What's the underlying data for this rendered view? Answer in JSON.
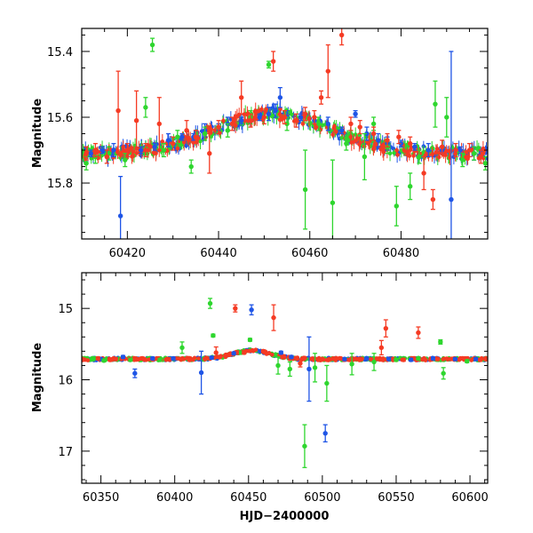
{
  "chart_data": [
    {
      "type": "scatter",
      "title": "",
      "xlabel": "",
      "ylabel": "Magnitude",
      "xlim": [
        60410,
        60499
      ],
      "ylim": [
        15.97,
        15.33
      ],
      "y_inverted": true,
      "grid": false,
      "x_ticks": [
        "60420",
        "60440",
        "60460",
        "60480"
      ],
      "y_ticks": [
        "15.4",
        "15.6",
        "15.8"
      ],
      "series": [
        {
          "color": "#1f55e6",
          "trend_base": 15.71,
          "trend_amplitude": 0.12,
          "points": [
            {
              "x": 60412.0,
              "y": 15.71,
              "err": 0.01
            },
            {
              "x": 60414.5,
              "y": 15.7,
              "err": 0.01
            },
            {
              "x": 60417.0,
              "y": 15.7,
              "err": 0.02
            },
            {
              "x": 60418.5,
              "y": 15.9,
              "err": 0.12
            },
            {
              "x": 60420.0,
              "y": 15.7,
              "err": 0.02
            },
            {
              "x": 60423.0,
              "y": 15.7,
              "err": 0.01
            },
            {
              "x": 60426.0,
              "y": 15.69,
              "err": 0.01
            },
            {
              "x": 60429.0,
              "y": 15.67,
              "err": 0.02
            },
            {
              "x": 60432.0,
              "y": 15.66,
              "err": 0.01
            },
            {
              "x": 60434.5,
              "y": 15.66,
              "err": 0.01
            },
            {
              "x": 60437.0,
              "y": 15.64,
              "err": 0.02
            },
            {
              "x": 60440.0,
              "y": 15.63,
              "err": 0.01
            },
            {
              "x": 60442.0,
              "y": 15.62,
              "err": 0.02
            },
            {
              "x": 60445.0,
              "y": 15.61,
              "err": 0.01
            },
            {
              "x": 60447.0,
              "y": 15.61,
              "err": 0.01
            },
            {
              "x": 60449.0,
              "y": 15.6,
              "err": 0.01
            },
            {
              "x": 60451.0,
              "y": 15.59,
              "err": 0.02
            },
            {
              "x": 60452.5,
              "y": 15.58,
              "err": 0.02
            },
            {
              "x": 60453.5,
              "y": 15.54,
              "err": 0.03
            },
            {
              "x": 60455.0,
              "y": 15.6,
              "err": 0.02
            },
            {
              "x": 60458.0,
              "y": 15.6,
              "err": 0.01
            },
            {
              "x": 60461.0,
              "y": 15.61,
              "err": 0.01
            },
            {
              "x": 60464.0,
              "y": 15.62,
              "err": 0.02
            },
            {
              "x": 60467.0,
              "y": 15.64,
              "err": 0.01
            },
            {
              "x": 60470.0,
              "y": 15.59,
              "err": 0.01
            },
            {
              "x": 60472.5,
              "y": 15.65,
              "err": 0.02
            },
            {
              "x": 60475.0,
              "y": 15.67,
              "err": 0.02
            },
            {
              "x": 60477.0,
              "y": 15.68,
              "err": 0.02
            },
            {
              "x": 60480.0,
              "y": 15.68,
              "err": 0.01
            },
            {
              "x": 60483.0,
              "y": 15.69,
              "err": 0.01
            },
            {
              "x": 60486.0,
              "y": 15.7,
              "err": 0.02
            },
            {
              "x": 60489.0,
              "y": 15.7,
              "err": 0.01
            },
            {
              "x": 60491.0,
              "y": 15.85,
              "err": 0.45
            },
            {
              "x": 60493.0,
              "y": 15.7,
              "err": 0.01
            },
            {
              "x": 60496.0,
              "y": 15.71,
              "err": 0.02
            }
          ]
        },
        {
          "color": "#2ed62e",
          "trend_base": 15.71,
          "trend_amplitude": 0.12,
          "points": [
            {
              "x": 60411.0,
              "y": 15.74,
              "err": 0.02
            },
            {
              "x": 60413.0,
              "y": 15.72,
              "err": 0.02
            },
            {
              "x": 60416.0,
              "y": 15.71,
              "err": 0.02
            },
            {
              "x": 60419.5,
              "y": 15.73,
              "err": 0.02
            },
            {
              "x": 60424.0,
              "y": 15.57,
              "err": 0.03
            },
            {
              "x": 60425.5,
              "y": 15.38,
              "err": 0.02
            },
            {
              "x": 60428.0,
              "y": 15.7,
              "err": 0.02
            },
            {
              "x": 60431.0,
              "y": 15.66,
              "err": 0.02
            },
            {
              "x": 60434.0,
              "y": 15.75,
              "err": 0.02
            },
            {
              "x": 60437.0,
              "y": 15.65,
              "err": 0.02
            },
            {
              "x": 60442.0,
              "y": 15.64,
              "err": 0.02
            },
            {
              "x": 60447.0,
              "y": 15.6,
              "err": 0.02
            },
            {
              "x": 60451.0,
              "y": 15.44,
              "err": 0.01
            },
            {
              "x": 60455.0,
              "y": 15.62,
              "err": 0.02
            },
            {
              "x": 60459.0,
              "y": 15.82,
              "err": 0.12
            },
            {
              "x": 60462.0,
              "y": 15.62,
              "err": 0.02
            },
            {
              "x": 60465.0,
              "y": 15.86,
              "err": 0.13
            },
            {
              "x": 60468.0,
              "y": 15.68,
              "err": 0.02
            },
            {
              "x": 60472.0,
              "y": 15.72,
              "err": 0.07
            },
            {
              "x": 60474.0,
              "y": 15.62,
              "err": 0.02
            },
            {
              "x": 60477.0,
              "y": 15.69,
              "err": 0.02
            },
            {
              "x": 60479.0,
              "y": 15.87,
              "err": 0.06
            },
            {
              "x": 60482.0,
              "y": 15.81,
              "err": 0.04
            },
            {
              "x": 60484.0,
              "y": 15.72,
              "err": 0.02
            },
            {
              "x": 60487.5,
              "y": 15.56,
              "err": 0.07
            },
            {
              "x": 60490.0,
              "y": 15.6,
              "err": 0.06
            },
            {
              "x": 60493.5,
              "y": 15.73,
              "err": 0.02
            },
            {
              "x": 60496.0,
              "y": 15.71,
              "err": 0.02
            },
            {
              "x": 60498.5,
              "y": 15.74,
              "err": 0.02
            }
          ]
        },
        {
          "color": "#f53b24",
          "trend_base": 15.71,
          "trend_amplitude": 0.12,
          "points": [
            {
              "x": 60411.0,
              "y": 15.71,
              "err": 0.02
            },
            {
              "x": 60413.0,
              "y": 15.7,
              "err": 0.02
            },
            {
              "x": 60415.5,
              "y": 15.72,
              "err": 0.02
            },
            {
              "x": 60418.0,
              "y": 15.58,
              "err": 0.12
            },
            {
              "x": 60420.0,
              "y": 15.7,
              "err": 0.02
            },
            {
              "x": 60422.0,
              "y": 15.61,
              "err": 0.09
            },
            {
              "x": 60424.0,
              "y": 15.7,
              "err": 0.02
            },
            {
              "x": 60427.0,
              "y": 15.62,
              "err": 0.08
            },
            {
              "x": 60430.0,
              "y": 15.68,
              "err": 0.02
            },
            {
              "x": 60433.0,
              "y": 15.64,
              "err": 0.03
            },
            {
              "x": 60435.0,
              "y": 15.66,
              "err": 0.02
            },
            {
              "x": 60438.0,
              "y": 15.71,
              "err": 0.06
            },
            {
              "x": 60440.0,
              "y": 15.63,
              "err": 0.02
            },
            {
              "x": 60443.0,
              "y": 15.62,
              "err": 0.02
            },
            {
              "x": 60445.0,
              "y": 15.54,
              "err": 0.05
            },
            {
              "x": 60447.0,
              "y": 15.61,
              "err": 0.02
            },
            {
              "x": 60450.0,
              "y": 15.6,
              "err": 0.02
            },
            {
              "x": 60452.0,
              "y": 15.43,
              "err": 0.03
            },
            {
              "x": 60454.5,
              "y": 15.6,
              "err": 0.02
            },
            {
              "x": 60457.0,
              "y": 15.61,
              "err": 0.02
            },
            {
              "x": 60459.0,
              "y": 15.59,
              "err": 0.02
            },
            {
              "x": 60461.0,
              "y": 15.6,
              "err": 0.02
            },
            {
              "x": 60462.5,
              "y": 15.54,
              "err": 0.02
            },
            {
              "x": 60464.0,
              "y": 15.46,
              "err": 0.08
            },
            {
              "x": 60467.0,
              "y": 15.35,
              "err": 0.03
            },
            {
              "x": 60469.0,
              "y": 15.62,
              "err": 0.02
            },
            {
              "x": 60471.0,
              "y": 15.63,
              "err": 0.02
            },
            {
              "x": 60474.0,
              "y": 15.65,
              "err": 0.02
            },
            {
              "x": 60477.0,
              "y": 15.67,
              "err": 0.02
            },
            {
              "x": 60479.5,
              "y": 15.66,
              "err": 0.02
            },
            {
              "x": 60482.0,
              "y": 15.68,
              "err": 0.02
            },
            {
              "x": 60485.0,
              "y": 15.77,
              "err": 0.05
            },
            {
              "x": 60487.0,
              "y": 15.85,
              "err": 0.03
            },
            {
              "x": 60489.0,
              "y": 15.69,
              "err": 0.02
            },
            {
              "x": 60492.0,
              "y": 15.7,
              "err": 0.02
            },
            {
              "x": 60495.0,
              "y": 15.7,
              "err": 0.02
            },
            {
              "x": 60497.5,
              "y": 15.72,
              "err": 0.02
            }
          ]
        }
      ]
    },
    {
      "type": "scatter",
      "title": "",
      "xlabel": "HJD−2400000",
      "ylabel": "Magnitude",
      "xlim": [
        60337,
        60612
      ],
      "ylim": [
        17.45,
        14.5
      ],
      "y_inverted": true,
      "grid": false,
      "x_ticks": [
        "60350",
        "60400",
        "60450",
        "60500",
        "60550",
        "60600"
      ],
      "y_ticks": [
        "15",
        "16",
        "17"
      ],
      "series": [
        {
          "color": "#1f55e6",
          "trend_base": 15.71,
          "trend_amplitude": 0.12,
          "points": [
            {
              "x": 60350.0,
              "y": 15.71,
              "err": 0.02
            },
            {
              "x": 60365.0,
              "y": 15.68,
              "err": 0.02
            },
            {
              "x": 60373.0,
              "y": 15.91,
              "err": 0.06
            },
            {
              "x": 60385.0,
              "y": 15.7,
              "err": 0.02
            },
            {
              "x": 60399.0,
              "y": 15.7,
              "err": 0.02
            },
            {
              "x": 60418.0,
              "y": 15.9,
              "err": 0.3
            },
            {
              "x": 60425.0,
              "y": 15.69,
              "err": 0.02
            },
            {
              "x": 60440.0,
              "y": 15.63,
              "err": 0.02
            },
            {
              "x": 60452.0,
              "y": 15.02,
              "err": 0.07
            },
            {
              "x": 60458.0,
              "y": 15.6,
              "err": 0.02
            },
            {
              "x": 60472.0,
              "y": 15.62,
              "err": 0.02
            },
            {
              "x": 60479.0,
              "y": 15.68,
              "err": 0.02
            },
            {
              "x": 60491.0,
              "y": 15.85,
              "err": 0.45
            },
            {
              "x": 60502.0,
              "y": 16.75,
              "err": 0.12
            },
            {
              "x": 60515.0,
              "y": 15.71,
              "err": 0.02
            },
            {
              "x": 60530.0,
              "y": 15.7,
              "err": 0.02
            },
            {
              "x": 60545.0,
              "y": 15.71,
              "err": 0.02
            },
            {
              "x": 60560.0,
              "y": 15.72,
              "err": 0.02
            },
            {
              "x": 60575.0,
              "y": 15.7,
              "err": 0.02
            },
            {
              "x": 60590.0,
              "y": 15.71,
              "err": 0.02
            },
            {
              "x": 60604.0,
              "y": 15.71,
              "err": 0.02
            }
          ]
        },
        {
          "color": "#2ed62e",
          "trend_base": 15.71,
          "trend_amplitude": 0.12,
          "points": [
            {
              "x": 60352.0,
              "y": 15.73,
              "err": 0.02
            },
            {
              "x": 60370.0,
              "y": 15.72,
              "err": 0.02
            },
            {
              "x": 60390.0,
              "y": 15.72,
              "err": 0.02
            },
            {
              "x": 60405.0,
              "y": 15.55,
              "err": 0.08
            },
            {
              "x": 60424.0,
              "y": 14.93,
              "err": 0.07
            },
            {
              "x": 60426.0,
              "y": 15.38,
              "err": 0.02
            },
            {
              "x": 60445.0,
              "y": 15.62,
              "err": 0.02
            },
            {
              "x": 60451.0,
              "y": 15.44,
              "err": 0.02
            },
            {
              "x": 60470.0,
              "y": 15.8,
              "err": 0.12
            },
            {
              "x": 60478.0,
              "y": 15.85,
              "err": 0.1
            },
            {
              "x": 60488.0,
              "y": 16.93,
              "err": 0.3
            },
            {
              "x": 60495.0,
              "y": 15.83,
              "err": 0.2
            },
            {
              "x": 60503.0,
              "y": 16.05,
              "err": 0.25
            },
            {
              "x": 60520.0,
              "y": 15.78,
              "err": 0.15
            },
            {
              "x": 60535.0,
              "y": 15.75,
              "err": 0.12
            },
            {
              "x": 60550.0,
              "y": 15.72,
              "err": 0.02
            },
            {
              "x": 60565.0,
              "y": 15.7,
              "err": 0.02
            },
            {
              "x": 60580.0,
              "y": 15.47,
              "err": 0.03
            },
            {
              "x": 60582.0,
              "y": 15.91,
              "err": 0.08
            },
            {
              "x": 60598.0,
              "y": 15.74,
              "err": 0.02
            }
          ]
        },
        {
          "color": "#f53b24",
          "trend_base": 15.71,
          "trend_amplitude": 0.12,
          "points": [
            {
              "x": 60348.0,
              "y": 15.7,
              "err": 0.02
            },
            {
              "x": 60360.0,
              "y": 15.71,
              "err": 0.02
            },
            {
              "x": 60378.0,
              "y": 15.7,
              "err": 0.02
            },
            {
              "x": 60395.0,
              "y": 15.71,
              "err": 0.02
            },
            {
              "x": 60410.0,
              "y": 15.7,
              "err": 0.02
            },
            {
              "x": 60428.0,
              "y": 15.62,
              "err": 0.08
            },
            {
              "x": 60441.0,
              "y": 15.0,
              "err": 0.05
            },
            {
              "x": 60447.0,
              "y": 15.62,
              "err": 0.02
            },
            {
              "x": 60460.0,
              "y": 15.6,
              "err": 0.02
            },
            {
              "x": 60467.0,
              "y": 15.13,
              "err": 0.18
            },
            {
              "x": 60485.0,
              "y": 15.77,
              "err": 0.05
            },
            {
              "x": 60500.0,
              "y": 15.71,
              "err": 0.02
            },
            {
              "x": 60512.0,
              "y": 15.7,
              "err": 0.02
            },
            {
              "x": 60525.0,
              "y": 15.71,
              "err": 0.02
            },
            {
              "x": 60540.0,
              "y": 15.55,
              "err": 0.1
            },
            {
              "x": 60543.0,
              "y": 15.28,
              "err": 0.12
            },
            {
              "x": 60555.0,
              "y": 15.72,
              "err": 0.02
            },
            {
              "x": 60565.0,
              "y": 15.34,
              "err": 0.08
            },
            {
              "x": 60578.0,
              "y": 15.71,
              "err": 0.02
            },
            {
              "x": 60595.0,
              "y": 15.7,
              "err": 0.02
            },
            {
              "x": 60607.0,
              "y": 15.72,
              "err": 0.02
            }
          ]
        }
      ]
    }
  ]
}
